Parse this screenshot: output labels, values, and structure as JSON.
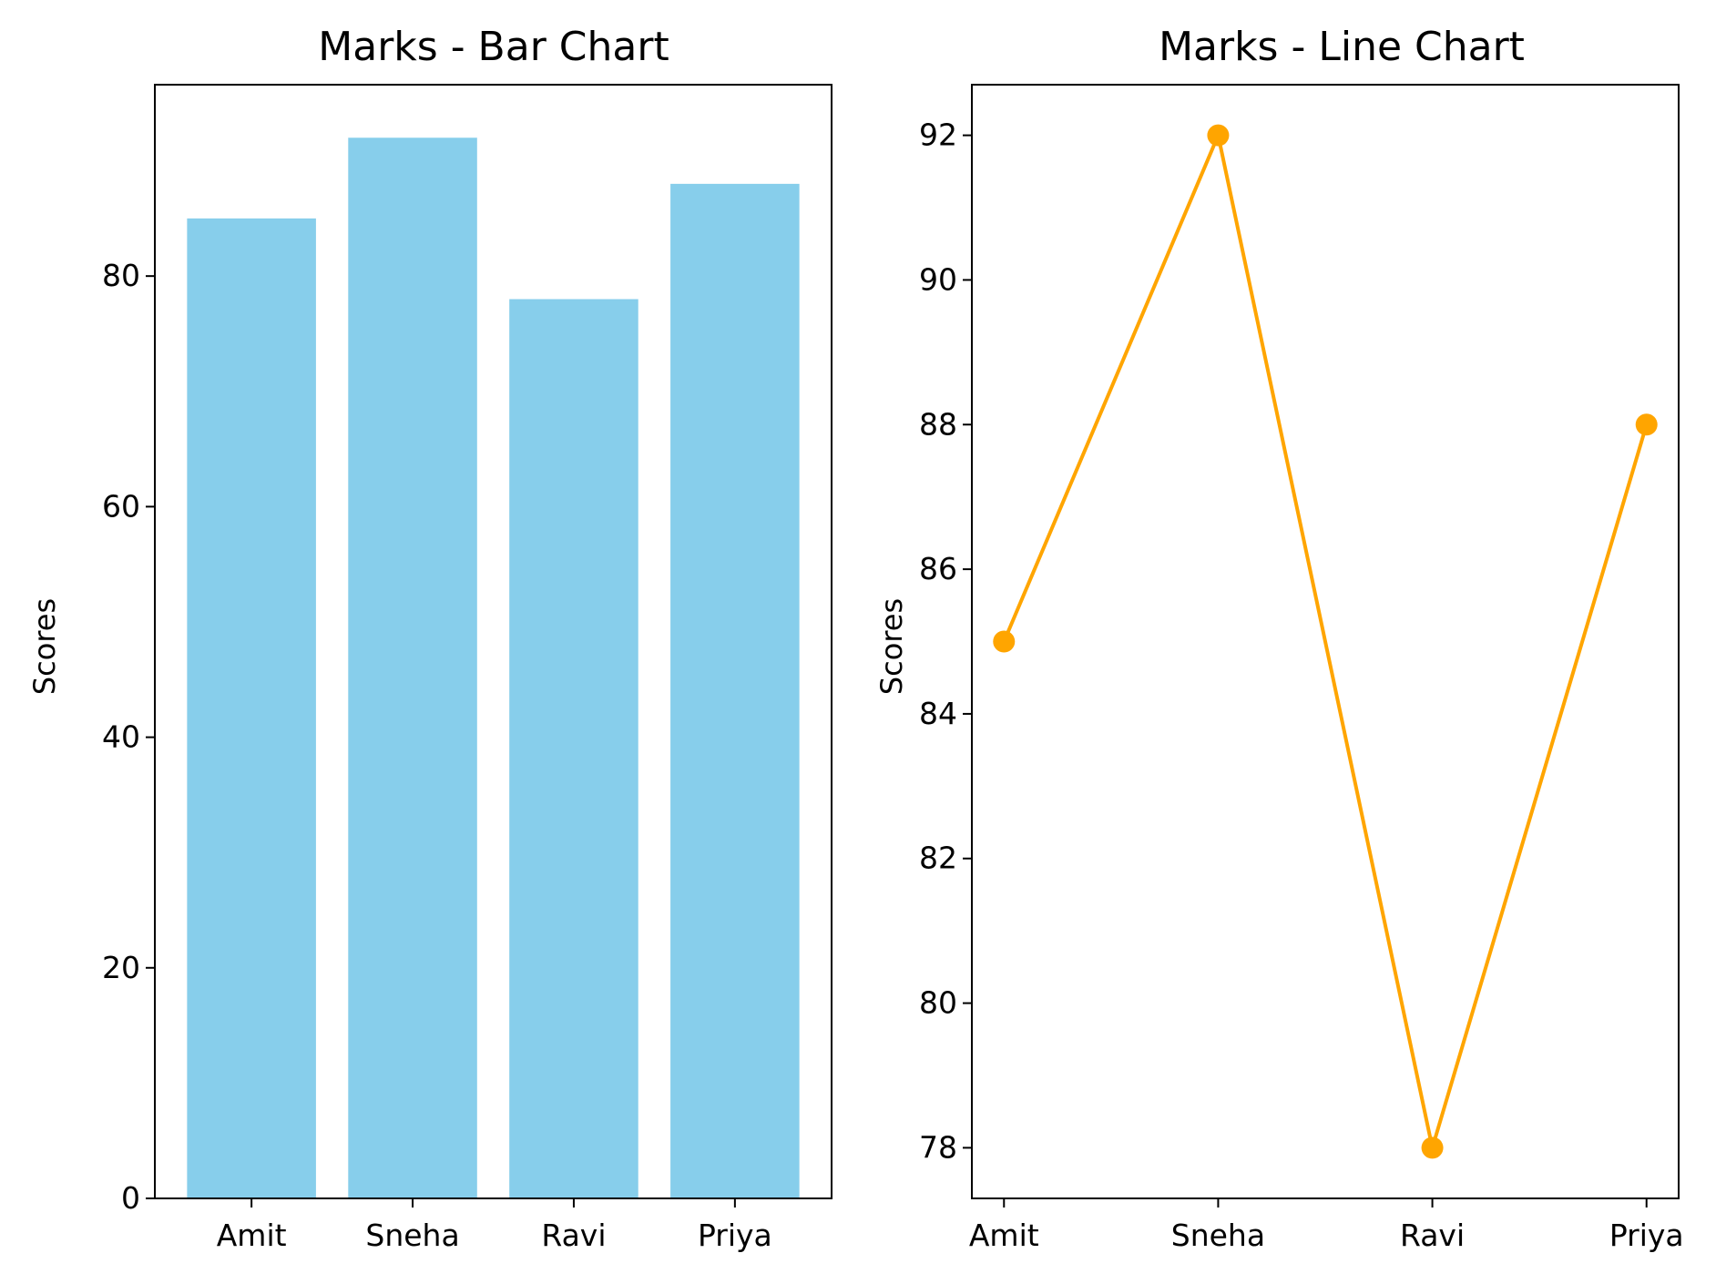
{
  "chart_data": [
    {
      "type": "bar",
      "title": "Marks - Bar Chart",
      "xlabel": "",
      "ylabel": "Scores",
      "categories": [
        "Amit",
        "Sneha",
        "Ravi",
        "Priya"
      ],
      "values": [
        85,
        92,
        78,
        88
      ],
      "ylim": [
        0,
        96.6
      ],
      "yticks": [
        0,
        20,
        40,
        60,
        80
      ],
      "color": "#87CEEB",
      "grid": false
    },
    {
      "type": "line",
      "title": "Marks - Line Chart",
      "xlabel": "",
      "ylabel": "Scores",
      "categories": [
        "Amit",
        "Sneha",
        "Ravi",
        "Priya"
      ],
      "values": [
        85,
        92,
        78,
        88
      ],
      "ylim": [
        77.3,
        92.7
      ],
      "yticks": [
        78,
        80,
        82,
        84,
        86,
        88,
        90,
        92
      ],
      "color": "#FFA500",
      "marker": "circle",
      "grid": false
    }
  ]
}
